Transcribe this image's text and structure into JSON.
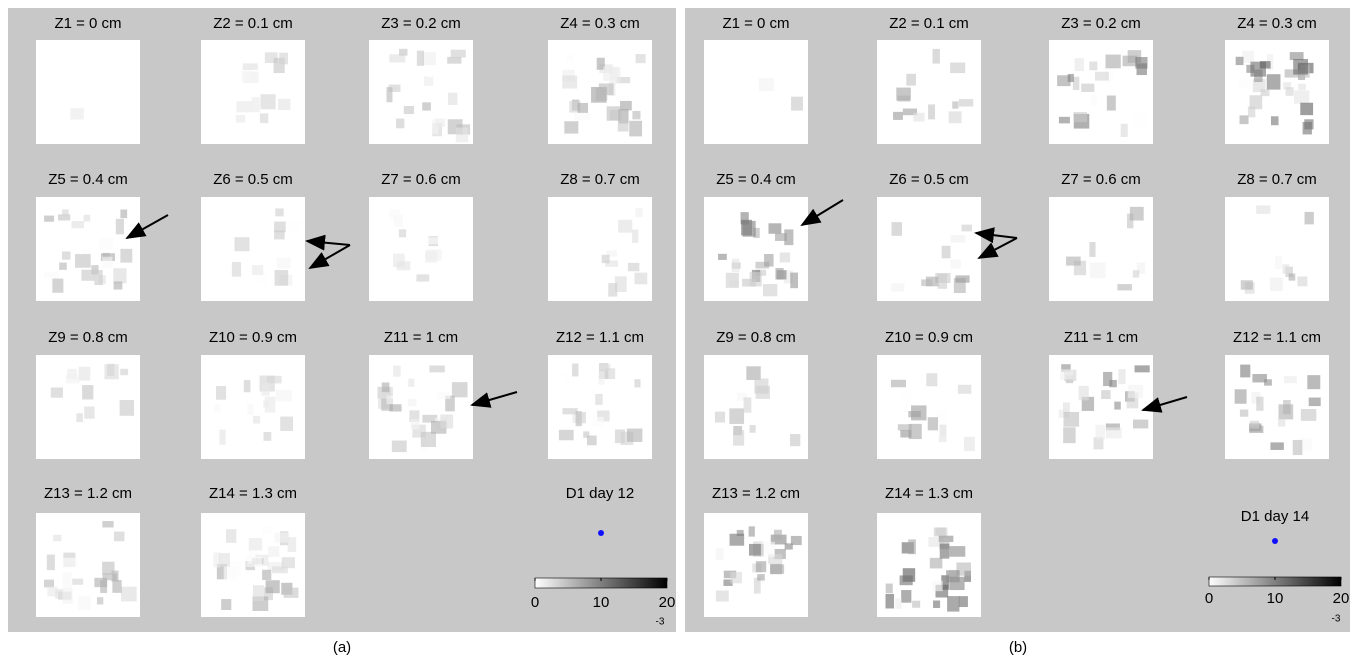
{
  "panels": [
    {
      "slices": [
        "Z1 = 0 cm",
        "Z2 = 0.1 cm",
        "Z3 = 0.2 cm",
        "Z4 = 0.3 cm",
        "Z5 = 0.4 cm",
        "Z6 = 0.5 cm",
        "Z7 = 0.6 cm",
        "Z8 = 0.7 cm",
        "Z9 = 0.8 cm",
        "Z10 = 0.9 cm",
        "Z11 = 1 cm",
        "Z12 = 1.1 cm",
        "Z13 = 1.2 cm",
        "Z14 = 1.3 cm"
      ],
      "legend": "D1 day 12",
      "colorbar": {
        "ticks": [
          0,
          10,
          20
        ],
        "exponent": -3
      },
      "caption": "(a)"
    },
    {
      "slices": [
        "Z1 = 0 cm",
        "Z2 = 0.1 cm",
        "Z3 = 0.2 cm",
        "Z4 = 0.3 cm",
        "Z5 = 0.4 cm",
        "Z6 = 0.5 cm",
        "Z7 = 0.6 cm",
        "Z8 = 0.7 cm",
        "Z9 = 0.8 cm",
        "Z10 = 0.9 cm",
        "Z11 = 1 cm",
        "Z12 = 1.1 cm",
        "Z13 = 1.2 cm",
        "Z14 = 1.3 cm"
      ],
      "legend": "D1 day 14",
      "colorbar": {
        "ticks": [
          0,
          10,
          20
        ],
        "exponent": -3
      },
      "caption": "(b)"
    }
  ]
}
